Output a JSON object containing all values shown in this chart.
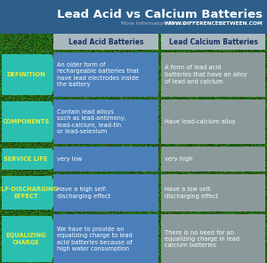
{
  "title": "Lead Acid vs Calcium Batteries",
  "subtitle_pre": "More Information  Online  ",
  "subtitle_url": "WWW.DIFFERENCEBETWEEN.COM",
  "col1_header": "Lead Acid Batteries",
  "col2_header": "Lead Calcium Batteries",
  "rows": [
    {
      "label": "DEFINITION",
      "col1": "An older form of\nrechargeable batteries that\nhave lead electrodes inside\nthe battery",
      "col2": "A form of lead acid\nbatteries that have an alloy\nof lead and calcium"
    },
    {
      "label": "COMPONENTS",
      "col1": "Contain lead alloys\nsuch as lead-antimony,\nlead-calcium, lead-tin\nor lead-selenium",
      "col2": "Have lead-calcium alloy"
    },
    {
      "label": "SERVICE LIFE",
      "col1": "very low",
      "col2": "very high"
    },
    {
      "label": "SELF-DISCHARGING\nEFFECT",
      "col1": "Have a high self-\ndischarging effect",
      "col2": "Have a low self-\ndischarging effect"
    },
    {
      "label": "EQUALIZING\nCHARGE",
      "col1": "We have to provide an\nequalizing charge to lead\nacid batteries because of\nhigh water consumption",
      "col2": "There is no need for an\nequalizing charge in lead\ncalcium batteries"
    }
  ],
  "title_bg_color": "#2d5f8a",
  "header_bg_color": "#aab8c0",
  "col1_bg_color": "#4a7fba",
  "col2_bg_color": "#8a9a9a",
  "label_bg_color": "#2bbfb0",
  "label_text_color": "#e8f040",
  "header_text_color": "#1a3060",
  "col_text_color": "#ffffff",
  "title_text_color": "#ffffff",
  "subtitle_text_color": "#bbbbcc",
  "subtitle_url_color": "#ffffff",
  "gap_color": "#2a6040",
  "nature_dark": "#1a3a20",
  "nature_mid": "#2a6030",
  "nature_light": "#3a8040"
}
